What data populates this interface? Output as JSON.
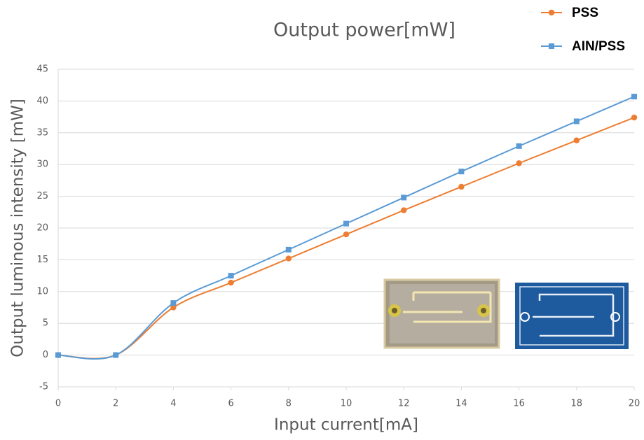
{
  "chart_data": {
    "type": "line",
    "title": "Output power[mW]",
    "x_label": "Input current[mA]",
    "y_label": "Output luminous intensity [mW]",
    "x": [
      0,
      2,
      4,
      6,
      8,
      10,
      12,
      14,
      16,
      18,
      20
    ],
    "series": [
      {
        "name": "PSS",
        "color": "#ed7d31",
        "marker": "circle",
        "values": [
          0,
          0,
          7.5,
          11.4,
          15.2,
          19.0,
          22.8,
          26.5,
          30.2,
          33.8,
          37.4
        ]
      },
      {
        "name": "AIN/PSS",
        "color": "#5b9bd5",
        "marker": "square",
        "values": [
          0,
          0,
          8.2,
          12.5,
          16.6,
          20.7,
          24.8,
          28.9,
          32.9,
          36.8,
          40.7
        ]
      }
    ],
    "xlim": [
      0,
      20
    ],
    "xticks": [
      0,
      2,
      4,
      6,
      8,
      10,
      12,
      14,
      16,
      18,
      20
    ],
    "ylim": [
      -5,
      45
    ],
    "yticks": [
      -5,
      0,
      5,
      10,
      15,
      20,
      25,
      30,
      35,
      40,
      45
    ],
    "grid": true,
    "smooth": true,
    "legend": "top-right"
  }
}
